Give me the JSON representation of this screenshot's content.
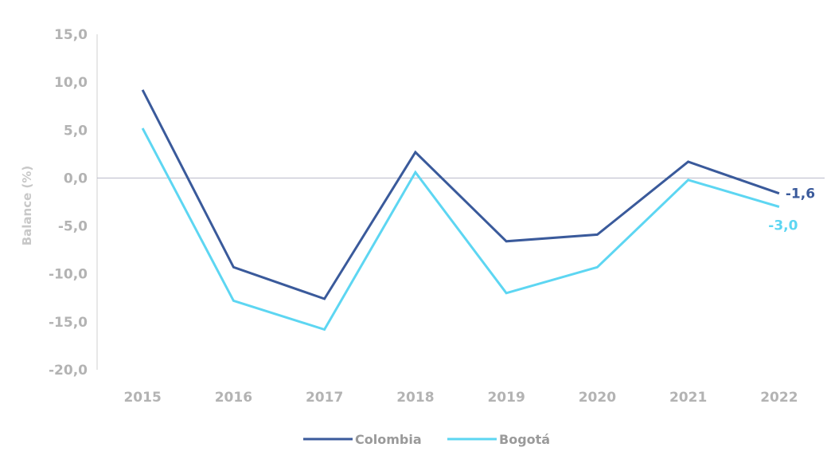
{
  "chart_data": {
    "type": "line",
    "categories": [
      "2015",
      "2016",
      "2017",
      "2018",
      "2019",
      "2020",
      "2021",
      "2022"
    ],
    "series": [
      {
        "name": "Colombia",
        "values": [
          9.2,
          -9.3,
          -12.6,
          2.7,
          -6.6,
          -5.9,
          1.7,
          -1.6
        ],
        "color": "#3a5a9b",
        "end_label": "-1,6"
      },
      {
        "name": "Bogotá",
        "values": [
          5.2,
          -12.8,
          -15.8,
          0.6,
          -12.0,
          -9.3,
          -0.2,
          -3.0
        ],
        "color": "#5dd6f2",
        "end_label": "-3,0"
      }
    ],
    "ylabel": "Balance (%)",
    "ylim": [
      -20,
      15
    ],
    "yticks": [
      15,
      10,
      5,
      0,
      -5,
      -10,
      -15,
      -20
    ],
    "ytick_labels": [
      "15,0",
      "10,0",
      "5,0",
      "0,0",
      "-5,0",
      "-10,0",
      "-15,0",
      "-20,0"
    ],
    "grid": false,
    "legend_position": "bottom"
  }
}
